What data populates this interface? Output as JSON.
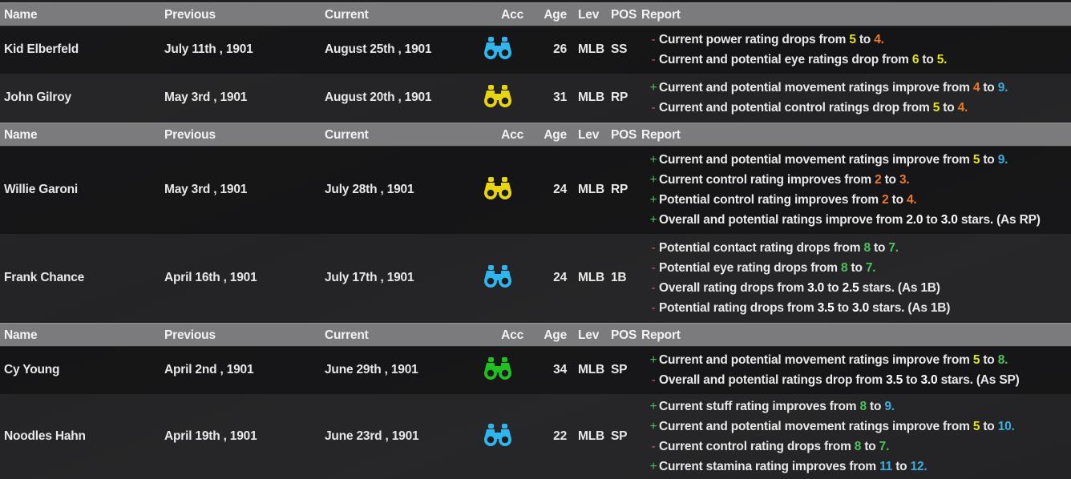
{
  "colors": {
    "yellow": "#e4e41c",
    "orange": "#ec7a22",
    "blue": "#3aaede",
    "green": "#4cc25a",
    "header_bg": "#7b7b7d"
  },
  "headers": {
    "name": "Name",
    "previous": "Previous",
    "current": "Current",
    "acc": "Acc",
    "age": "Age",
    "lev": "Lev",
    "pos": "POS",
    "report": "Report"
  },
  "groups": [
    {
      "players": [
        {
          "name": "Kid Elberfeld",
          "previous": "July 11th , 1901",
          "current": "August 25th , 1901",
          "acc_icon": "binoculars-icon",
          "acc_color": "#2fb6ee",
          "age": "26",
          "lev": "MLB",
          "pos": "SS",
          "report": [
            {
              "sign": "-",
              "parts": [
                {
                  "t": "Current power rating drops from "
                },
                {
                  "t": "5",
                  "c": "yellow"
                },
                {
                  "t": " to "
                },
                {
                  "t": "4.",
                  "c": "orange"
                }
              ]
            },
            {
              "sign": "-",
              "parts": [
                {
                  "t": "Current and potential eye ratings drop from "
                },
                {
                  "t": "6",
                  "c": "yellow"
                },
                {
                  "t": " to "
                },
                {
                  "t": "5.",
                  "c": "yellow"
                }
              ]
            }
          ]
        },
        {
          "name": "John Gilroy",
          "previous": "May 3rd , 1901",
          "current": "August 20th , 1901",
          "acc_icon": "binoculars-icon",
          "acc_color": "#e8d60c",
          "age": "31",
          "lev": "MLB",
          "pos": "RP",
          "report": [
            {
              "sign": "+",
              "parts": [
                {
                  "t": "Current and potential movement ratings improve from "
                },
                {
                  "t": "4",
                  "c": "orange"
                },
                {
                  "t": " to "
                },
                {
                  "t": "9.",
                  "c": "blue"
                }
              ]
            },
            {
              "sign": "-",
              "parts": [
                {
                  "t": "Current and potential control ratings drop from "
                },
                {
                  "t": "5",
                  "c": "yellow"
                },
                {
                  "t": " to "
                },
                {
                  "t": "4.",
                  "c": "orange"
                }
              ]
            }
          ]
        }
      ]
    },
    {
      "players": [
        {
          "name": "Willie Garoni",
          "previous": "May 3rd , 1901",
          "current": "July 28th , 1901",
          "acc_icon": "binoculars-icon",
          "acc_color": "#e8d60c",
          "age": "24",
          "lev": "MLB",
          "pos": "RP",
          "report": [
            {
              "sign": "+",
              "parts": [
                {
                  "t": "Current and potential movement ratings improve from "
                },
                {
                  "t": "5",
                  "c": "yellow"
                },
                {
                  "t": " to "
                },
                {
                  "t": "9.",
                  "c": "blue"
                }
              ]
            },
            {
              "sign": "+",
              "parts": [
                {
                  "t": "Current control rating improves from "
                },
                {
                  "t": "2",
                  "c": "orange"
                },
                {
                  "t": " to "
                },
                {
                  "t": "3.",
                  "c": "orange"
                }
              ]
            },
            {
              "sign": "+",
              "parts": [
                {
                  "t": "Potential control rating improves from "
                },
                {
                  "t": "2",
                  "c": "orange"
                },
                {
                  "t": " to "
                },
                {
                  "t": "4.",
                  "c": "orange"
                }
              ]
            },
            {
              "sign": "+",
              "parts": [
                {
                  "t": "Overall and potential ratings improve from "
                },
                {
                  "t": "2.0",
                  "c": "white"
                },
                {
                  "t": " to "
                },
                {
                  "t": "3.0",
                  "c": "white"
                },
                {
                  "t": " stars. (As RP)"
                }
              ]
            }
          ]
        },
        {
          "name": "Frank Chance",
          "previous": "April 16th , 1901",
          "current": "July 17th , 1901",
          "acc_icon": "binoculars-icon",
          "acc_color": "#2fb6ee",
          "age": "24",
          "lev": "MLB",
          "pos": "1B",
          "report": [
            {
              "sign": "-",
              "parts": [
                {
                  "t": "Potential contact rating drops from "
                },
                {
                  "t": "8",
                  "c": "green"
                },
                {
                  "t": " to "
                },
                {
                  "t": "7.",
                  "c": "green"
                }
              ]
            },
            {
              "sign": "-",
              "parts": [
                {
                  "t": "Potential eye rating drops from "
                },
                {
                  "t": "8",
                  "c": "green"
                },
                {
                  "t": " to "
                },
                {
                  "t": "7.",
                  "c": "green"
                }
              ]
            },
            {
              "sign": "-",
              "parts": [
                {
                  "t": "Overall rating drops from "
                },
                {
                  "t": "3.0",
                  "c": "white"
                },
                {
                  "t": " to "
                },
                {
                  "t": "2.5",
                  "c": "white"
                },
                {
                  "t": " stars. (As 1B)"
                }
              ]
            },
            {
              "sign": "-",
              "parts": [
                {
                  "t": "Potential rating drops from "
                },
                {
                  "t": "3.5",
                  "c": "white"
                },
                {
                  "t": " to "
                },
                {
                  "t": "3.0",
                  "c": "white"
                },
                {
                  "t": " stars. (As 1B)"
                }
              ]
            }
          ]
        }
      ]
    },
    {
      "players": [
        {
          "name": "Cy Young",
          "previous": "April 2nd , 1901",
          "current": "June 29th , 1901",
          "acc_icon": "binoculars-icon",
          "acc_color": "#20c020",
          "age": "34",
          "lev": "MLB",
          "pos": "SP",
          "report": [
            {
              "sign": "+",
              "parts": [
                {
                  "t": "Current and potential movement ratings improve from "
                },
                {
                  "t": "5",
                  "c": "yellow"
                },
                {
                  "t": " to "
                },
                {
                  "t": "8.",
                  "c": "green"
                }
              ]
            },
            {
              "sign": "-",
              "parts": [
                {
                  "t": "Overall and potential ratings drop from "
                },
                {
                  "t": "3.5",
                  "c": "white"
                },
                {
                  "t": " to "
                },
                {
                  "t": "3.0",
                  "c": "white"
                },
                {
                  "t": " stars. (As SP)"
                }
              ]
            }
          ]
        },
        {
          "name": "Noodles Hahn",
          "previous": "April 19th , 1901",
          "current": "June 23rd , 1901",
          "acc_icon": "binoculars-icon",
          "acc_color": "#2fb6ee",
          "age": "22",
          "lev": "MLB",
          "pos": "SP",
          "report": [
            {
              "sign": "+",
              "parts": [
                {
                  "t": "Current stuff rating improves from "
                },
                {
                  "t": "8",
                  "c": "green"
                },
                {
                  "t": " to "
                },
                {
                  "t": "9.",
                  "c": "blue"
                }
              ]
            },
            {
              "sign": "+",
              "parts": [
                {
                  "t": "Current and potential movement ratings improve from "
                },
                {
                  "t": "5",
                  "c": "yellow"
                },
                {
                  "t": " to "
                },
                {
                  "t": "10.",
                  "c": "blue"
                }
              ]
            },
            {
              "sign": "-",
              "parts": [
                {
                  "t": "Current control rating drops from "
                },
                {
                  "t": "8",
                  "c": "green"
                },
                {
                  "t": " to "
                },
                {
                  "t": "7.",
                  "c": "green"
                }
              ]
            },
            {
              "sign": "+",
              "parts": [
                {
                  "t": "Current stamina rating improves from "
                },
                {
                  "t": "11",
                  "c": "blue"
                },
                {
                  "t": " to "
                },
                {
                  "t": "12.",
                  "c": "blue"
                }
              ]
            }
          ]
        }
      ]
    }
  ]
}
